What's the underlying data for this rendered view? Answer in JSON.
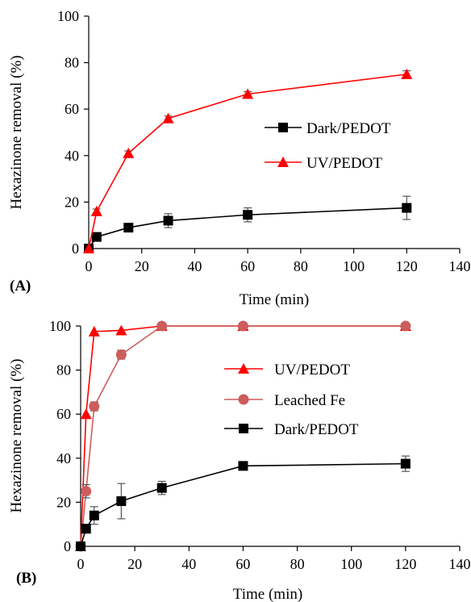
{
  "chart_data": [
    {
      "panel_label": "(A)",
      "type": "line",
      "xlabel": "Time (min)",
      "ylabel": "Hexazinone removal (%)",
      "xlim": [
        0,
        140
      ],
      "ylim": [
        0,
        100
      ],
      "xticks": [
        0,
        20,
        40,
        60,
        80,
        100,
        120,
        140
      ],
      "yticks": [
        0,
        20,
        40,
        60,
        80,
        100
      ],
      "grid": false,
      "legend_position": "right",
      "series": [
        {
          "name": "Dark/PEDOT",
          "color": "#000000",
          "marker": "square",
          "x": [
            0,
            3,
            15,
            30,
            60,
            120
          ],
          "y": [
            0,
            5,
            9,
            12,
            14.5,
            17.5
          ],
          "error": [
            0,
            1,
            1,
            3,
            3,
            5
          ]
        },
        {
          "name": "UV/PEDOT",
          "color": "#ff0000",
          "marker": "triangle",
          "x": [
            0,
            3,
            15,
            30,
            60,
            120
          ],
          "y": [
            0,
            16,
            41,
            56,
            66.5,
            75
          ],
          "error": [
            0,
            1,
            1,
            1,
            1,
            1.5
          ]
        }
      ]
    },
    {
      "panel_label": "(B)",
      "type": "line",
      "xlabel": "Time (min)",
      "ylabel": "Hexazinone removal (%)",
      "xlim": [
        0,
        140
      ],
      "ylim": [
        0,
        100
      ],
      "xticks": [
        0,
        20,
        40,
        60,
        80,
        100,
        120,
        140
      ],
      "yticks": [
        0,
        20,
        40,
        60,
        80,
        100
      ],
      "grid": false,
      "legend_position": "right",
      "series": [
        {
          "name": "UV/PEDOT",
          "color": "#ff0000",
          "marker": "triangle",
          "x": [
            0,
            2,
            5,
            15,
            30,
            60,
            120
          ],
          "y": [
            0,
            60,
            97.5,
            98,
            100,
            100,
            100
          ],
          "error": [
            0,
            0,
            0,
            0,
            0,
            0,
            0
          ]
        },
        {
          "name": "Leached Fe",
          "color": "#cd5c5c",
          "marker": "circle",
          "x": [
            0,
            2,
            5,
            15,
            30,
            60,
            120
          ],
          "y": [
            0,
            25,
            63.5,
            87,
            100,
            100,
            100
          ],
          "error": [
            0,
            3,
            2,
            2,
            0,
            0,
            0
          ]
        },
        {
          "name": "Dark/PEDOT",
          "color": "#000000",
          "marker": "square",
          "x": [
            0,
            2,
            5,
            15,
            30,
            60,
            120
          ],
          "y": [
            0,
            8,
            14,
            20.5,
            26.5,
            36.5,
            37.5
          ],
          "error": [
            0,
            2,
            4,
            8,
            3,
            0,
            3.5
          ]
        }
      ]
    }
  ]
}
